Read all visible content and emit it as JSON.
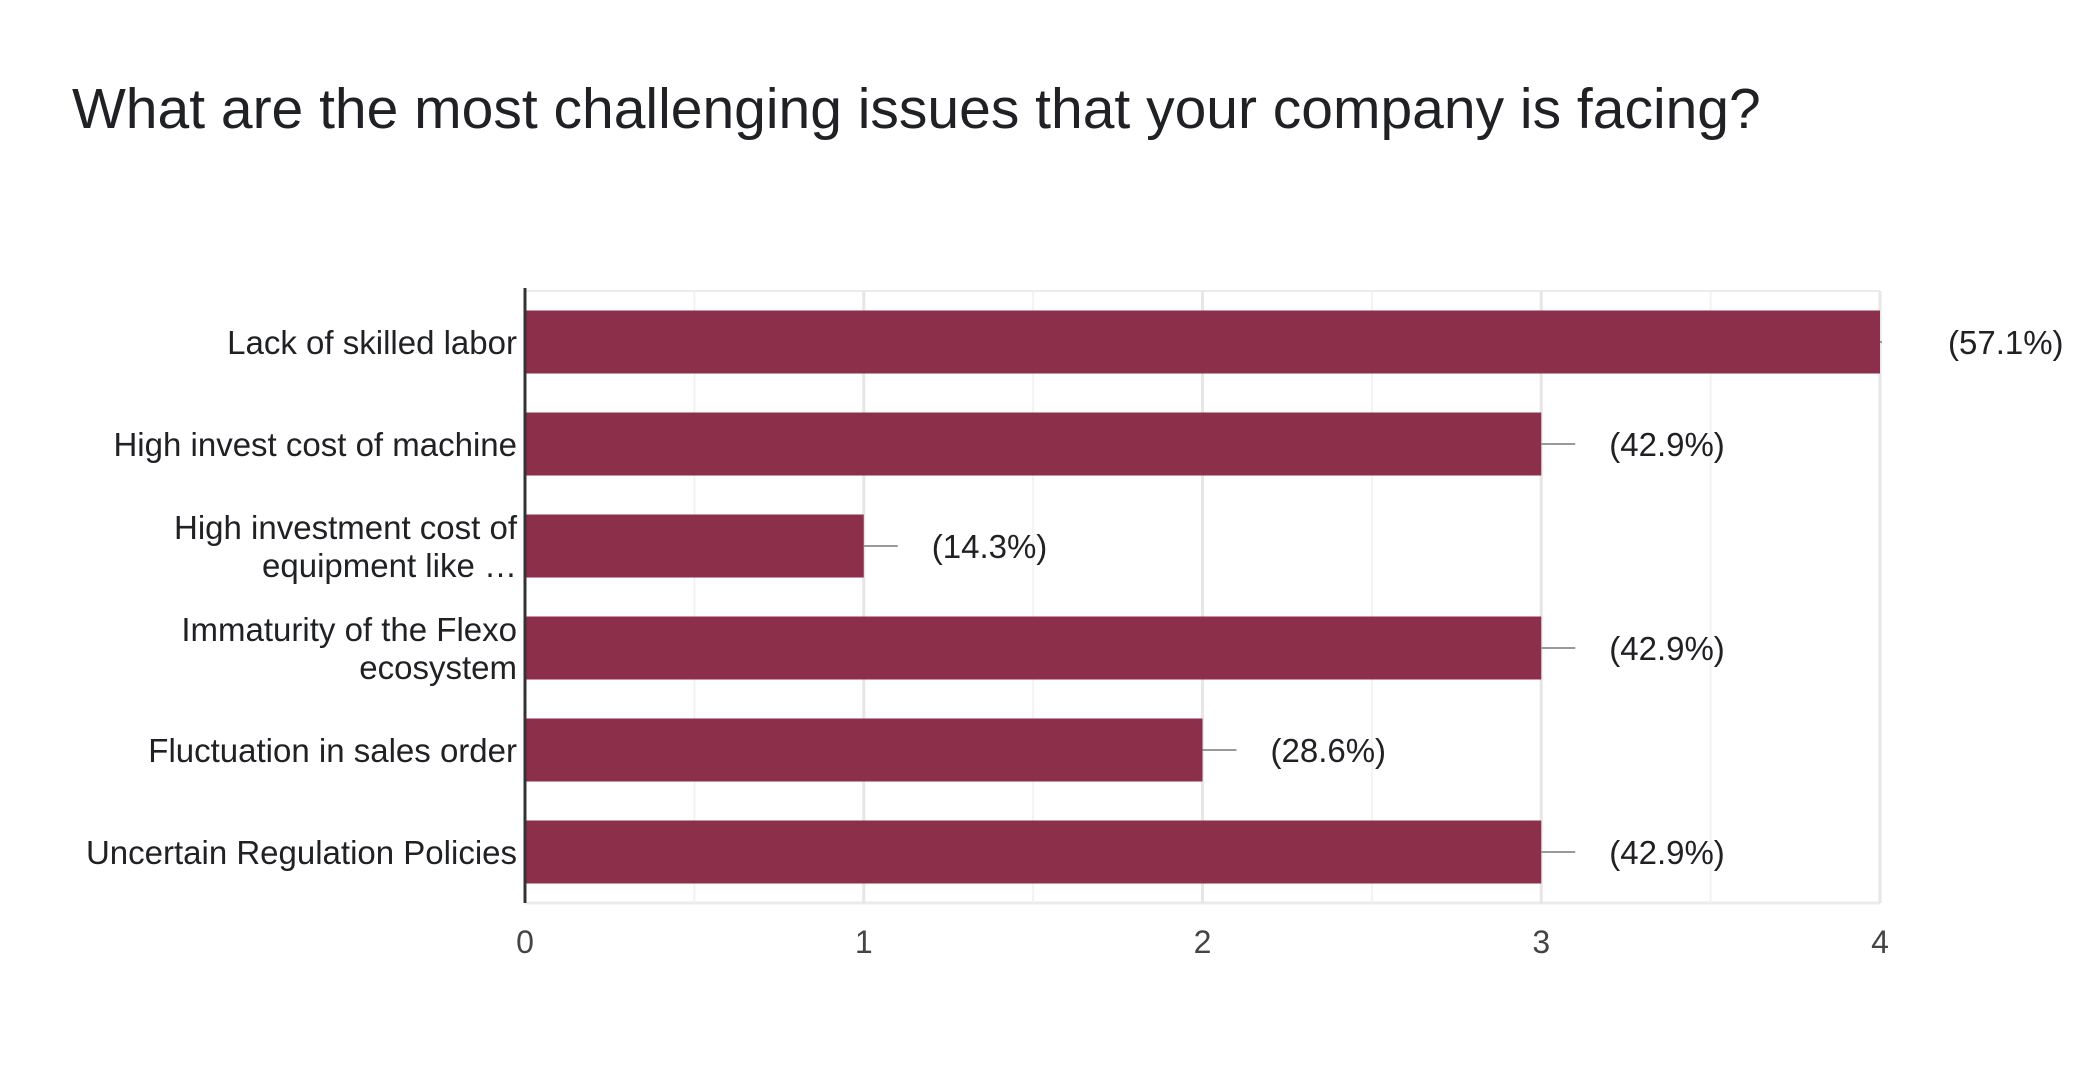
{
  "chart_data": {
    "type": "bar",
    "orientation": "horizontal",
    "title": "What are the most challenging issues that your company is facing?",
    "categories": [
      [
        "Lack of skilled labor"
      ],
      [
        "High invest cost of machine"
      ],
      [
        "High investment cost of",
        "equipment like …"
      ],
      [
        "Immaturity of the Flexo",
        "ecosystem"
      ],
      [
        "Fluctuation in sales order"
      ],
      [
        "Uncertain Regulation Policies"
      ]
    ],
    "values": [
      4,
      3,
      1,
      3,
      2,
      3
    ],
    "value_labels": [
      "(57.1%)",
      "(42.9%)",
      "(14.3%)",
      "(42.9%)",
      "(28.6%)",
      "(42.9%)"
    ],
    "xlim": [
      0,
      4
    ],
    "x_ticks": [
      "0",
      "1",
      "2",
      "3",
      "4"
    ],
    "xlabel": "",
    "ylabel": "",
    "grid": true,
    "legend": "none",
    "bar_color": "#8b2f4b",
    "gridline_color": "#ebebeb",
    "axis_color": "#333333",
    "leader_color": "#999999"
  }
}
